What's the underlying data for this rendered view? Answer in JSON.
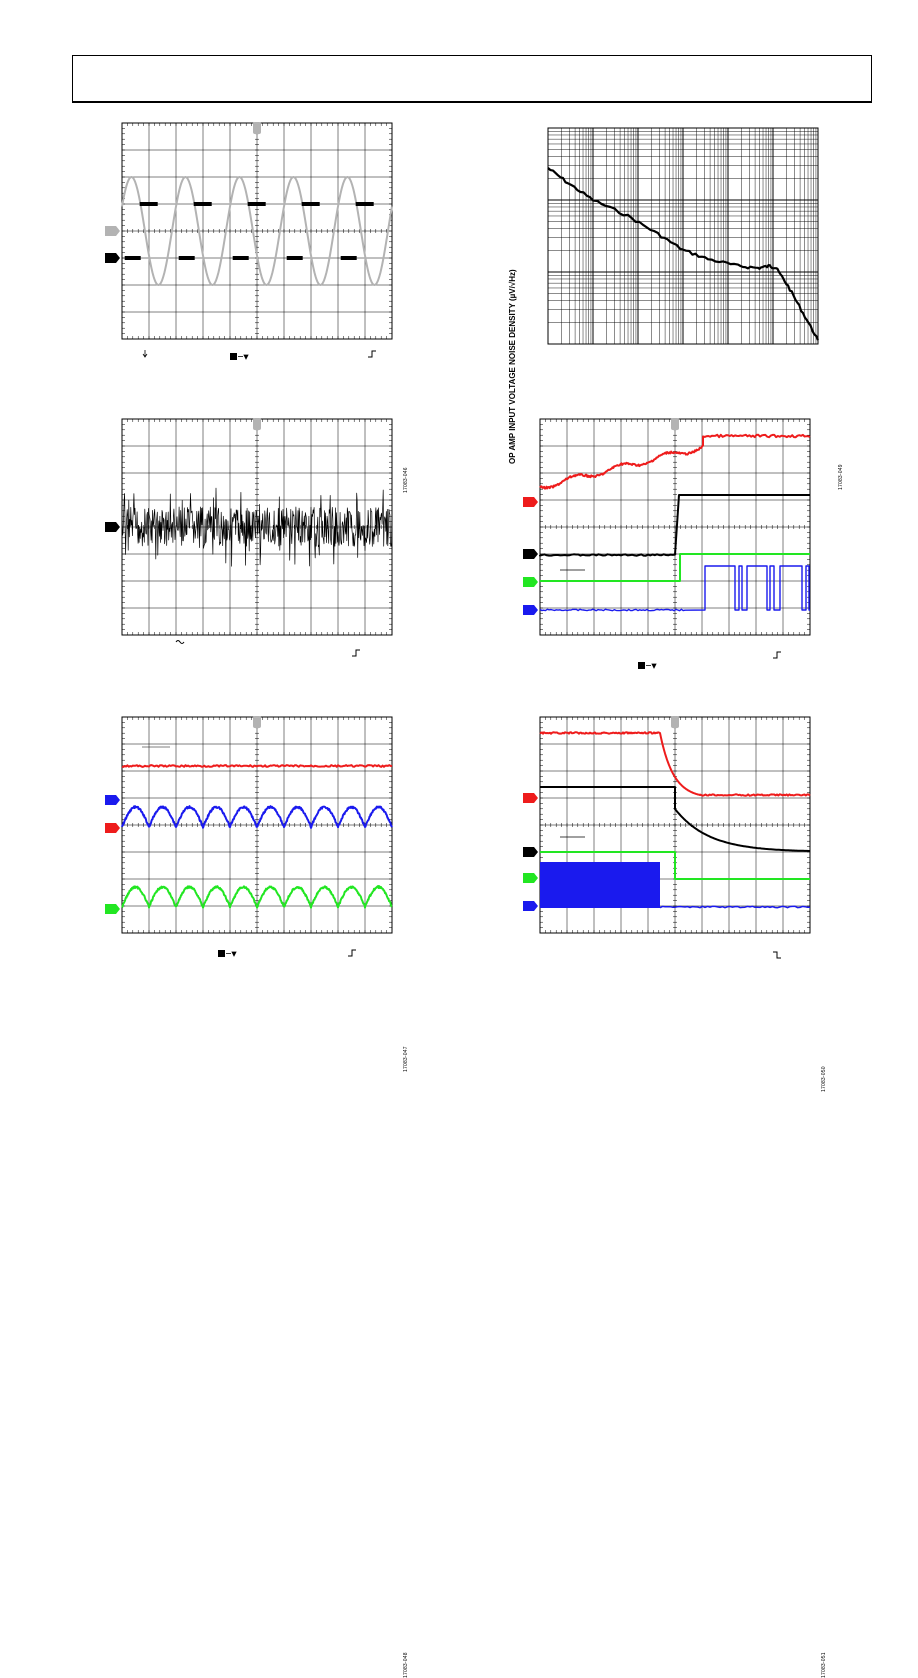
{
  "page": {
    "header_box": ""
  },
  "figures": [
    {
      "id": "fig-sine-scope",
      "figure_code": "17083-046",
      "type": "scope"
    },
    {
      "id": "fig-noise-density",
      "figure_code": "17083-049",
      "type": "loglog",
      "ylabel": "OP AMP INPUT VOLTAGE NOISE DENSITY (µV/√Hz)"
    },
    {
      "id": "fig-noise-scope",
      "figure_code": "17083-047",
      "type": "scope"
    },
    {
      "id": "fig-power-up-scope",
      "figure_code": "17083-050",
      "type": "scope"
    },
    {
      "id": "fig-ripple-scope",
      "figure_code": "17083-048",
      "type": "scope"
    },
    {
      "id": "fig-power-down-scope",
      "figure_code": "17083-051",
      "type": "scope"
    }
  ],
  "colors": {
    "trace_gray": "#b3b3b3",
    "trace_black": "#000000",
    "trace_red": "#ee1c1c",
    "trace_green": "#22e622",
    "trace_blue": "#1a1aee",
    "grid": "#000000"
  },
  "icons": {
    "trigger_rise": "trigger-rising-edge-icon",
    "trigger_fall": "trigger-falling-edge-icon",
    "ac_coupling": "ac-coupling-icon",
    "bw_limit": "bandwidth-limit-icon"
  }
}
